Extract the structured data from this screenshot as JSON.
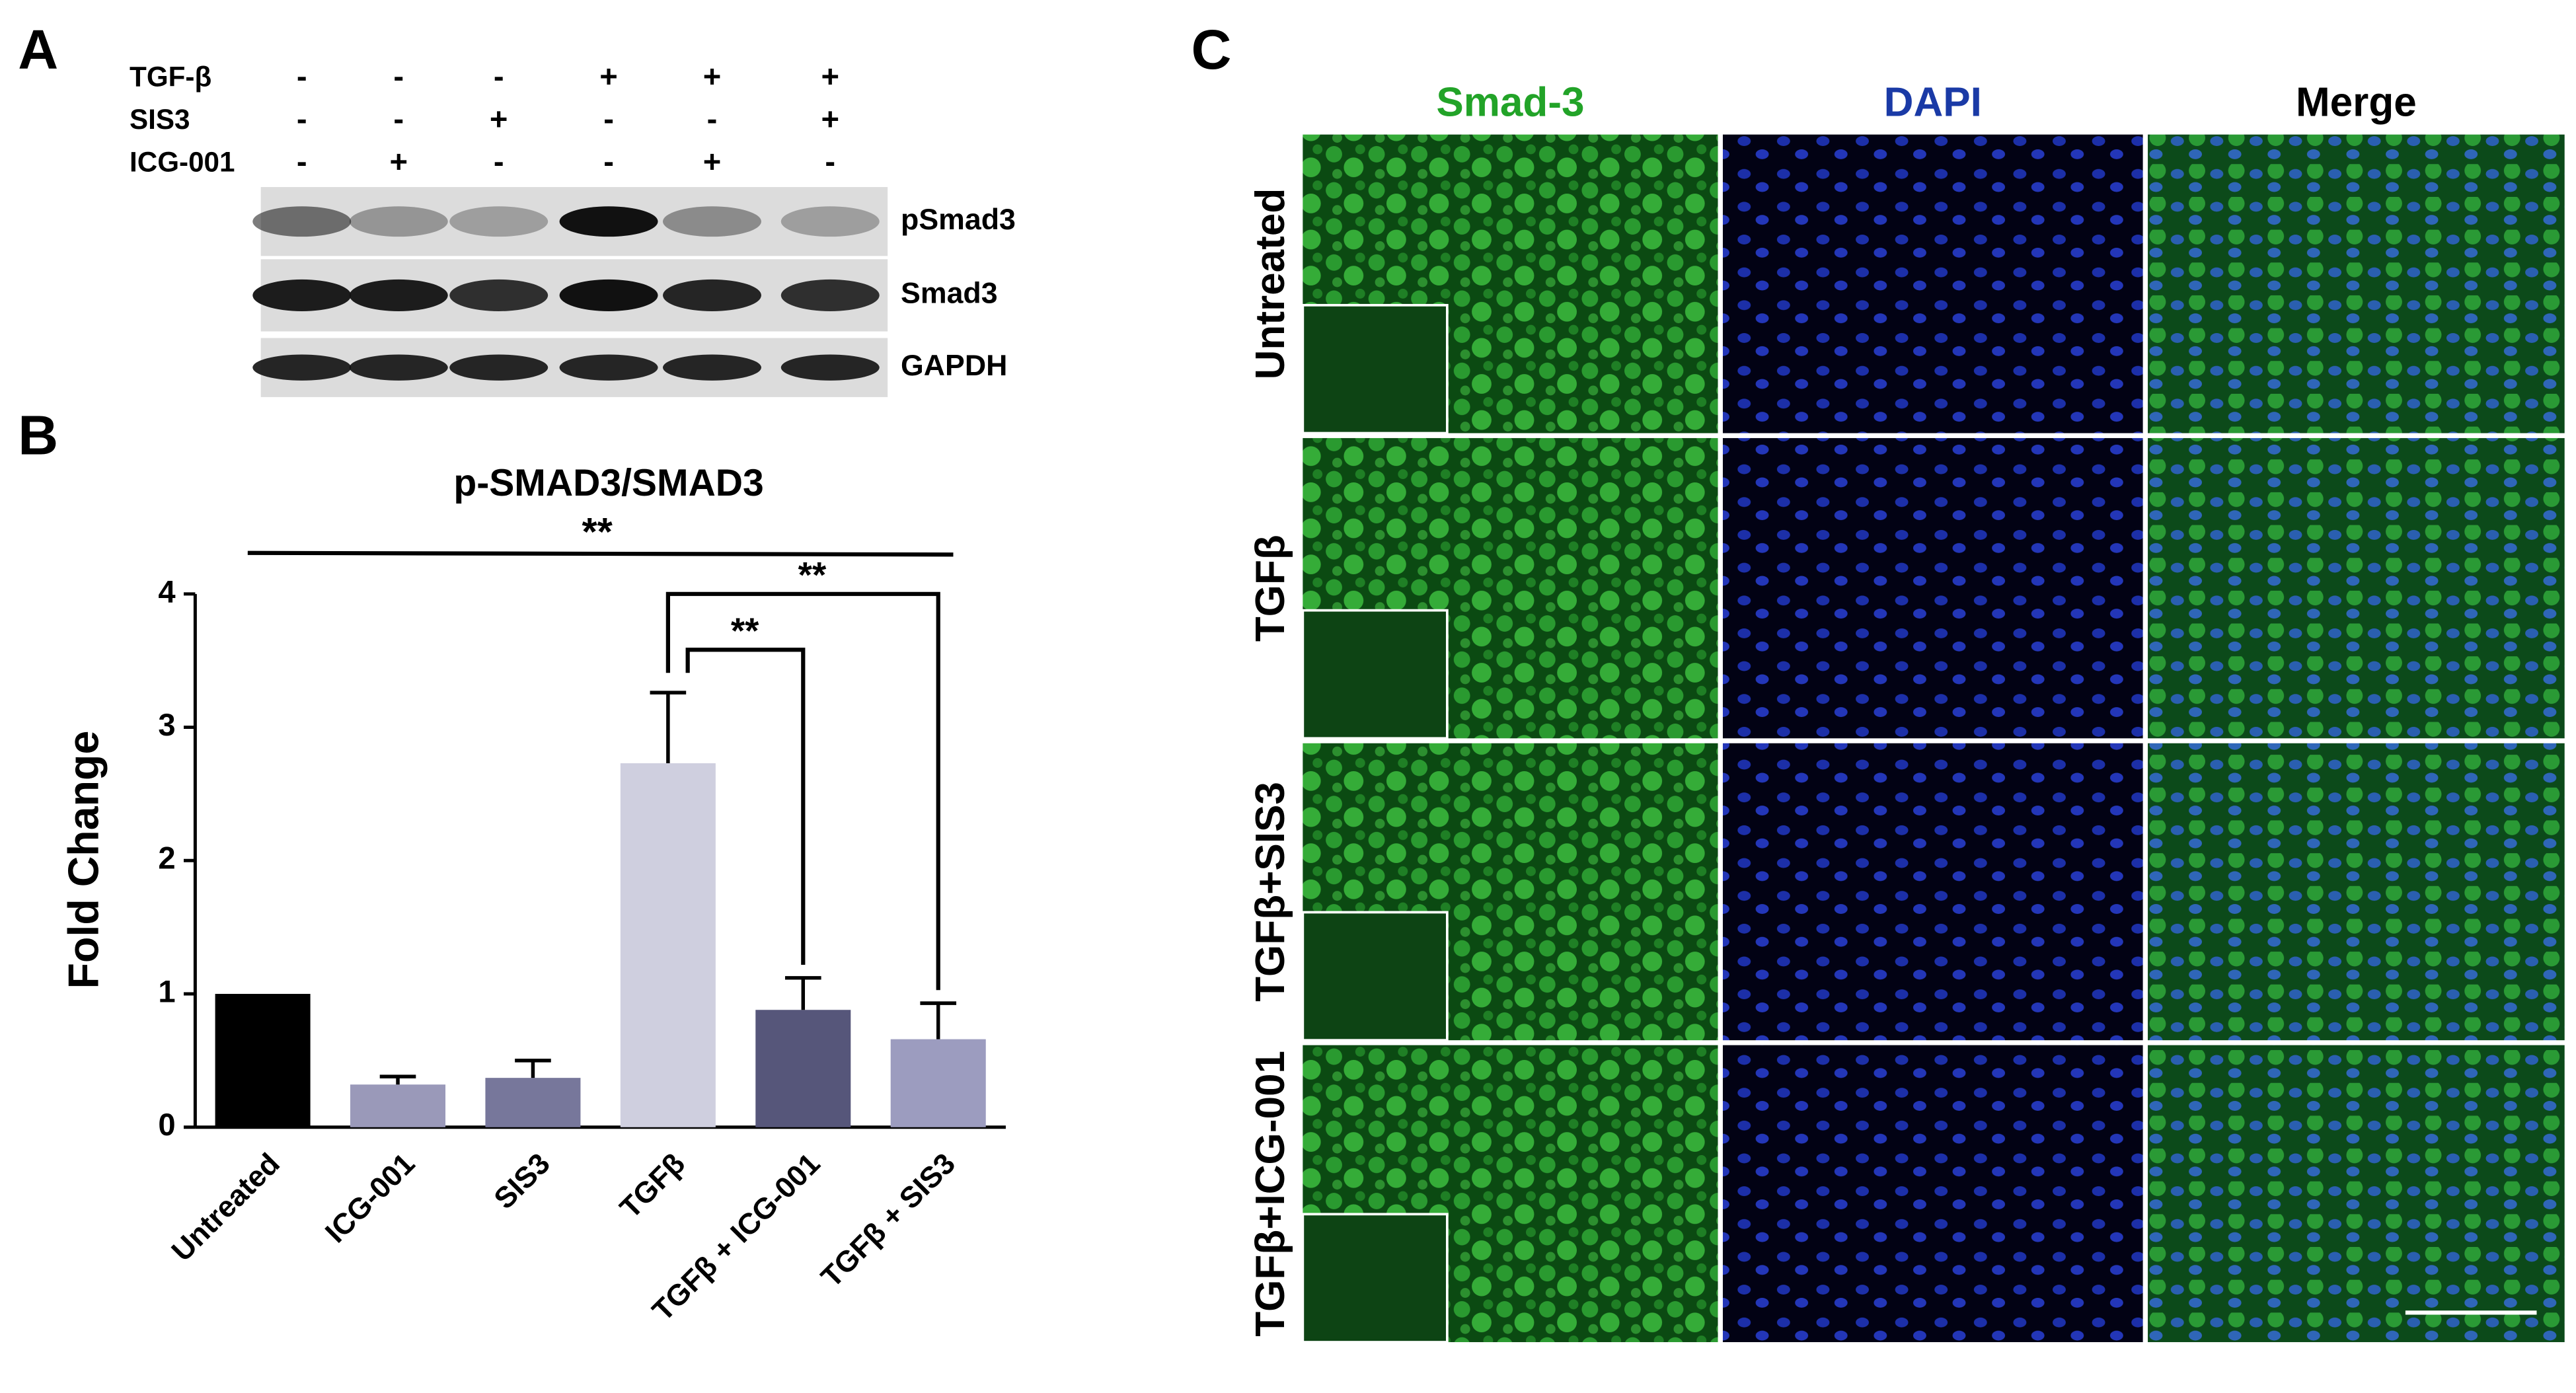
{
  "panel_labels": [
    "A",
    "B",
    "C"
  ],
  "blot": {
    "conditions": [
      {
        "label": "TGF-β",
        "signs": [
          "-",
          "-",
          "-",
          "+",
          "+",
          "+"
        ]
      },
      {
        "label": "SIS3",
        "signs": [
          "-",
          "-",
          "+",
          "-",
          "-",
          "+"
        ]
      },
      {
        "label": "ICG-001",
        "signs": [
          "-",
          "+",
          "-",
          "-",
          "+",
          "-"
        ]
      }
    ],
    "bands": [
      "pSmad3",
      "Smad3",
      "GAPDH"
    ]
  },
  "chart_data": {
    "type": "bar",
    "title": "p-SMAD3/SMAD3",
    "y_label": "Fold Change",
    "categories": [
      "Untreated",
      "ICG-001",
      "SIS3",
      "TGFβ",
      "TGFβ + ICG-001",
      "TGFβ + SIS3"
    ],
    "values": [
      1.0,
      0.32,
      0.37,
      2.73,
      0.88,
      0.66
    ],
    "errors": [
      null,
      0.06,
      0.13,
      0.53,
      0.24,
      0.27
    ],
    "colors": [
      "#000000",
      "#9a99b9",
      "#77779b",
      "#cfcfdf",
      "#56567a",
      "#9c9cbf"
    ],
    "ylim": [
      0,
      4
    ],
    "yticks": [
      0,
      1,
      2,
      3,
      4
    ],
    "annotations": [
      "**",
      "**",
      "**"
    ]
  },
  "microscopy": {
    "columns": [
      {
        "label": "Smad-3",
        "color": "#22a328"
      },
      {
        "label": "DAPI",
        "color": "#1a3aa6"
      },
      {
        "label": "Merge",
        "color": "#000000"
      }
    ],
    "rows": [
      "Untreated",
      "TGFβ",
      "TGFβ+SIS3",
      "TGFβ+ICG-001"
    ]
  }
}
